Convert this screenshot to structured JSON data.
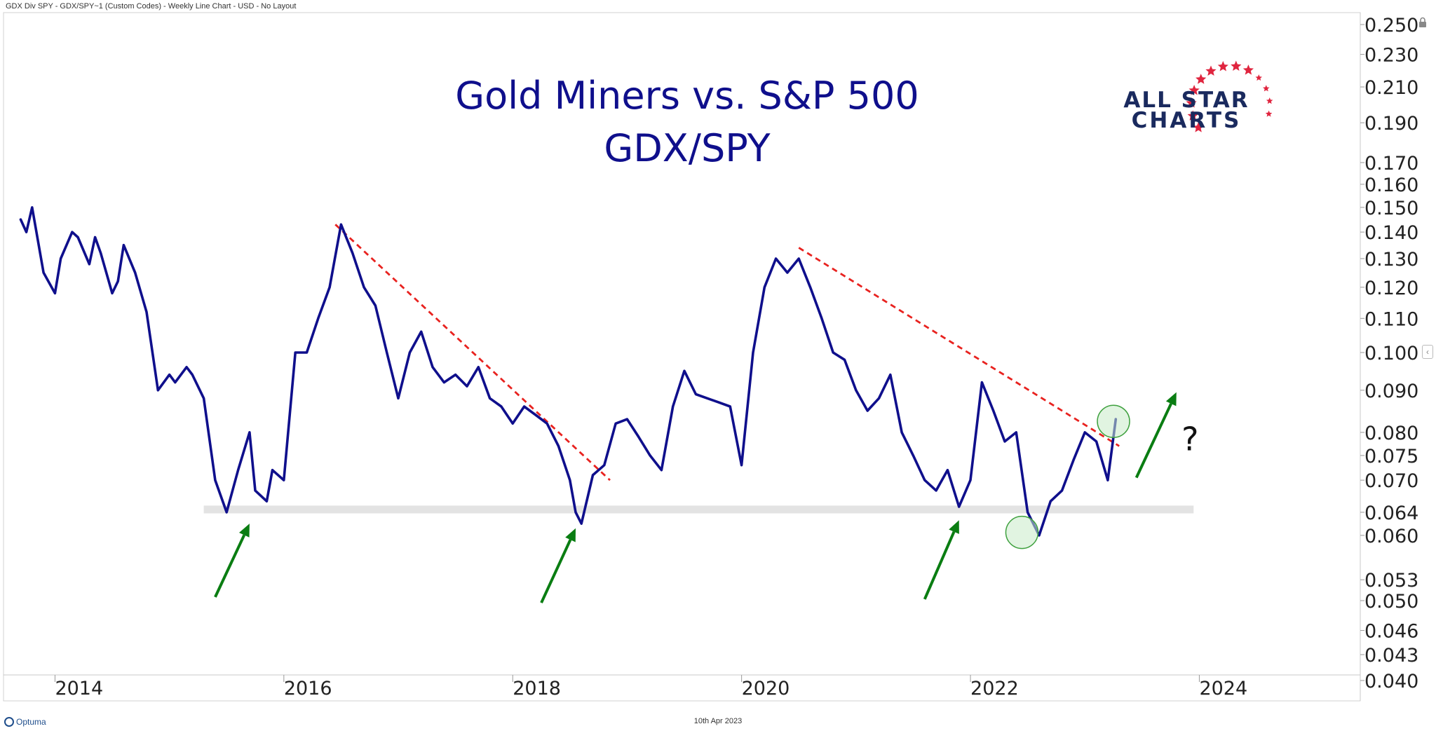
{
  "header": {
    "chart_descriptor": "GDX Div SPY - GDX/SPY~1 (Custom Codes) - Weekly Line Chart - USD - No Layout"
  },
  "footer": {
    "brand": "Optuma",
    "date": "10th Apr 2023"
  },
  "logo": {
    "line1": "ALL STAR",
    "line2": "CHARTS",
    "star_color": "#e0253f",
    "text_color": "#1a2a5e"
  },
  "annotations": {
    "question_mark": "?"
  },
  "colors": {
    "series": "#0f0f8c",
    "title": "#0f0f8c",
    "trendline": "#e8221f",
    "arrow": "#0a7d12",
    "support_zone": "#e3e3e3",
    "circle_fill": "#c9ebc9",
    "circle_stroke": "#3fa13f"
  },
  "icons": {
    "lock": "lock-icon",
    "collapse": "chevron-left-icon"
  },
  "chart_data": {
    "type": "line",
    "title": "Gold Miners vs. S&P 500",
    "subtitle": "GDX/SPY",
    "xlabel": "",
    "ylabel": "",
    "y_scale": "log",
    "grid": false,
    "x_range": [
      "2013-09",
      "2025-07"
    ],
    "ylim": [
      0.04,
      0.258
    ],
    "x_ticks": [
      "2014",
      "2016",
      "2018",
      "2020",
      "2022",
      "2024"
    ],
    "y_ticks": [
      "0.250",
      "0.230",
      "0.210",
      "0.190",
      "0.170",
      "0.160",
      "0.150",
      "0.140",
      "0.130",
      "0.120",
      "0.110",
      "0.100",
      "0.090",
      "0.080",
      "0.075",
      "0.070",
      "0.064",
      "0.060",
      "0.053",
      "0.050",
      "0.046",
      "0.043",
      "0.040"
    ],
    "series": [
      {
        "x": [
          2013.7,
          2013.75,
          2013.8,
          2013.9,
          2014.0,
          2014.05,
          2014.15,
          2014.2,
          2014.3,
          2014.35,
          2014.4,
          2014.5,
          2014.55,
          2014.6,
          2014.7,
          2014.8,
          2014.9,
          2015.0,
          2015.05,
          2015.15,
          2015.2,
          2015.3,
          2015.4,
          2015.5,
          2015.6,
          2015.7,
          2015.75,
          2015.85,
          2015.9,
          2016.0,
          2016.1,
          2016.2,
          2016.3,
          2016.4,
          2016.5,
          2016.6,
          2016.7,
          2016.8,
          2016.9,
          2017.0,
          2017.1,
          2017.2,
          2017.3,
          2017.4,
          2017.5,
          2017.6,
          2017.7,
          2017.8,
          2017.9,
          2018.0,
          2018.1,
          2018.2,
          2018.3,
          2018.4,
          2018.5,
          2018.55,
          2018.6,
          2018.7,
          2018.8,
          2018.9,
          2019.0,
          2019.1,
          2019.2,
          2019.3,
          2019.4,
          2019.5,
          2019.6,
          2019.7,
          2019.8,
          2019.9,
          2020.0,
          2020.1,
          2020.2,
          2020.3,
          2020.4,
          2020.5,
          2020.6,
          2020.7,
          2020.8,
          2020.9,
          2021.0,
          2021.1,
          2021.2,
          2021.3,
          2021.4,
          2021.5,
          2021.6,
          2021.7,
          2021.8,
          2021.9,
          2022.0,
          2022.1,
          2022.2,
          2022.3,
          2022.4,
          2022.5,
          2022.6,
          2022.7,
          2022.8,
          2022.9,
          2023.0,
          2023.1,
          2023.2,
          2023.27
        ],
        "values": [
          0.145,
          0.14,
          0.15,
          0.125,
          0.118,
          0.13,
          0.14,
          0.138,
          0.128,
          0.138,
          0.132,
          0.118,
          0.122,
          0.135,
          0.125,
          0.112,
          0.09,
          0.094,
          0.092,
          0.096,
          0.094,
          0.088,
          0.07,
          0.064,
          0.072,
          0.08,
          0.068,
          0.066,
          0.072,
          0.07,
          0.1,
          0.1,
          0.11,
          0.12,
          0.143,
          0.132,
          0.12,
          0.114,
          0.1,
          0.088,
          0.1,
          0.106,
          0.096,
          0.092,
          0.094,
          0.091,
          0.096,
          0.088,
          0.086,
          0.082,
          0.086,
          0.084,
          0.082,
          0.077,
          0.07,
          0.064,
          0.062,
          0.071,
          0.073,
          0.082,
          0.083,
          0.079,
          0.075,
          0.072,
          0.086,
          0.095,
          0.089,
          0.088,
          0.087,
          0.086,
          0.073,
          0.1,
          0.12,
          0.13,
          0.125,
          0.13,
          0.12,
          0.11,
          0.1,
          0.098,
          0.09,
          0.085,
          0.088,
          0.094,
          0.08,
          0.075,
          0.07,
          0.068,
          0.072,
          0.065,
          0.07,
          0.092,
          0.085,
          0.078,
          0.08,
          0.064,
          0.06,
          0.066,
          0.068,
          0.074,
          0.08,
          0.078,
          0.07,
          0.083
        ]
      }
    ],
    "trendlines": [
      {
        "from": {
          "x": 2016.45,
          "y": 0.143
        },
        "to": {
          "x": 2018.85,
          "y": 0.07
        }
      },
      {
        "from": {
          "x": 2020.5,
          "y": 0.134
        },
        "to": {
          "x": 2023.3,
          "y": 0.077
        }
      }
    ],
    "support_zone": {
      "y_low": 0.0638,
      "y_high": 0.0652,
      "x_start": 2015.3,
      "x_end": 2023.95
    },
    "circles": [
      {
        "x": 2022.45,
        "y": 0.0605
      },
      {
        "x": 2023.25,
        "y": 0.0825
      }
    ],
    "arrows": [
      {
        "from": {
          "x": 2015.4,
          "y": 0.0505
        },
        "to": {
          "x": 2015.7,
          "y": 0.062
        }
      },
      {
        "from": {
          "x": 2018.25,
          "y": 0.0497
        },
        "to": {
          "x": 2018.55,
          "y": 0.0612
        }
      },
      {
        "from": {
          "x": 2021.6,
          "y": 0.0502
        },
        "to": {
          "x": 2021.9,
          "y": 0.0626
        }
      },
      {
        "from": {
          "x": 2023.45,
          "y": 0.0705
        },
        "to": {
          "x": 2023.8,
          "y": 0.0895
        }
      }
    ],
    "question_mark_at": {
      "x": 2023.92,
      "y": 0.0785
    }
  }
}
